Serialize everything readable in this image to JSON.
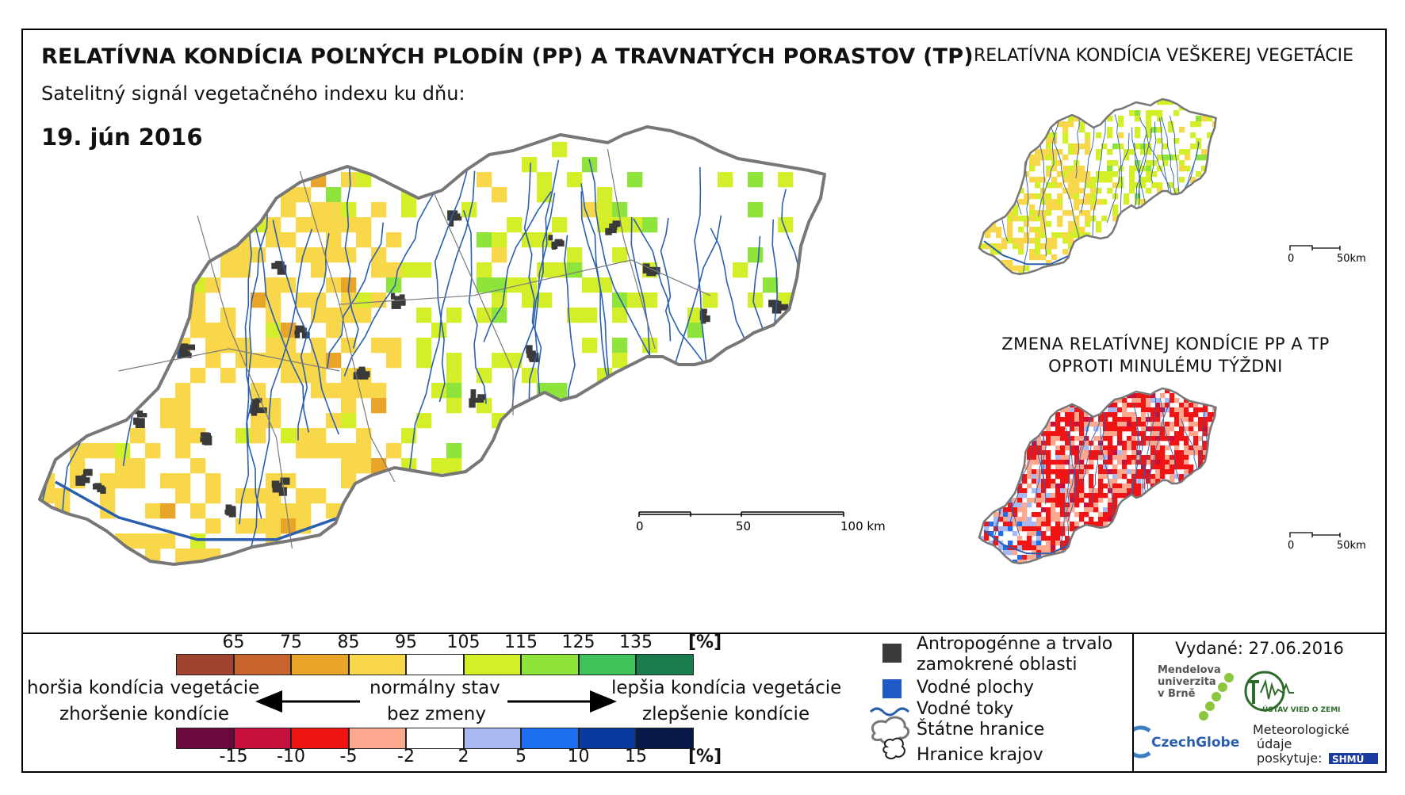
{
  "title": "RELATÍVNA KONDÍCIA POĽNÝCH PLODÍN (PP) A TRAVNATÝCH PORASTOV (TP)",
  "right_title": "RELATÍVNA KONDÍCIA VEŠKEREJ VEGETÁCIE",
  "subtitle": "Satelitný signál vegetačného indexu ku dňu:",
  "date": "19. jún 2016",
  "change_title_line1": "ZMENA RELATÍVNEJ KONDÍCIE PP A TP",
  "change_title_line2": "OPROTI MINULÉMU TÝŽDNI",
  "main_scale": {
    "labels": [
      "0",
      "50",
      "100 km"
    ]
  },
  "small_scale": {
    "labels": [
      "0",
      "50km"
    ]
  },
  "condition_legend": {
    "labels": [
      "65",
      "75",
      "85",
      "95",
      "105",
      "115",
      "125",
      "135"
    ],
    "unit": "[%]",
    "colors": [
      "#a0432f",
      "#c8642e",
      "#e9a52a",
      "#f8d84a",
      "#ffffff",
      "#d4ee2a",
      "#8ee43a",
      "#3fc25a",
      "#1a7c4c"
    ]
  },
  "change_legend": {
    "labels": [
      "-15",
      "-10",
      "-5",
      "-2",
      "2",
      "5",
      "10",
      "15"
    ],
    "unit": "[%]",
    "colors": [
      "#6a0a3c",
      "#c8103c",
      "#f01414",
      "#fca88e",
      "#ffffff",
      "#a8b8f0",
      "#1e6ef0",
      "#0a3aa0",
      "#061848"
    ]
  },
  "worse_text": "horšia kondícia vegetácie",
  "worse_change_text": "zhoršenie kondície",
  "normal_text": "normálny stav",
  "no_change_text": "bez zmeny",
  "better_text": "lepšia kondícia vegetácie",
  "better_change_text": "zlepšenie kondície",
  "map_legend": {
    "anthropogenic_line1": "Antropogénne a trvalo",
    "anthropogenic_line2": "zamokrené oblasti",
    "water_bodies": "Vodné plochy",
    "rivers": "Vodné toky",
    "state_borders": "Štátne hranice",
    "region_borders": "Hranice krajov"
  },
  "issued": "Vydané: 27.06.2016",
  "logos": {
    "mendel_line1": "Mendelova",
    "mendel_line2": "univerzita",
    "mendel_line3": "v Brně",
    "czechglobe": "CzechGlobe",
    "uvoz": "ÚSTAV VIED O ZEMI",
    "meteo_line1": "Meteorologické",
    "meteo_line2": "údaje",
    "meteo_line3": "poskytuje:",
    "shmu": "SHMÚ"
  },
  "colors": {
    "river": "#2a5fb0",
    "urban": "#3a3a3a",
    "water": "#1e5bc6",
    "border": "#888888"
  }
}
